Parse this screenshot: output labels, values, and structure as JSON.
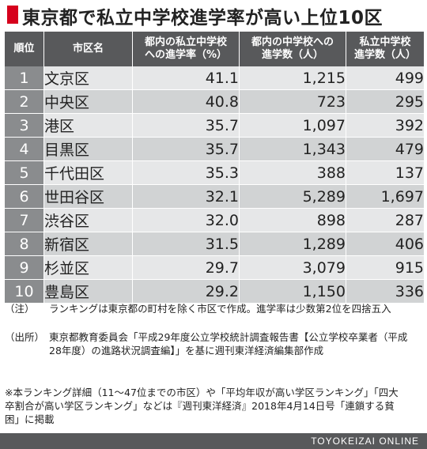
{
  "colors": {
    "title_mark": "#d6001c",
    "header_bg": "#58595b",
    "rank_bg": "#8a8c8e",
    "row_light": "#e6e7e8",
    "row_dark": "#d1d3d4",
    "footer_bg": "#58595b"
  },
  "title": "東京都で私立中学校進学率が高い上位10区",
  "headers": [
    [
      "順位"
    ],
    [
      "市区名"
    ],
    [
      "都内の私立中学校",
      "への進学率（%）"
    ],
    [
      "都内の中学校への",
      "進学数（人）"
    ],
    [
      "私立中学校",
      "進学数（人）"
    ]
  ],
  "rows": [
    {
      "rank": "1",
      "name": "文京区",
      "rate": "41.1",
      "total": "1,215",
      "private": "499"
    },
    {
      "rank": "2",
      "name": "中央区",
      "rate": "40.8",
      "total": "723",
      "private": "295"
    },
    {
      "rank": "3",
      "name": "港区",
      "rate": "35.7",
      "total": "1,097",
      "private": "392"
    },
    {
      "rank": "4",
      "name": "目黒区",
      "rate": "35.7",
      "total": "1,343",
      "private": "479"
    },
    {
      "rank": "5",
      "name": "千代田区",
      "rate": "35.3",
      "total": "388",
      "private": "137"
    },
    {
      "rank": "6",
      "name": "世田谷区",
      "rate": "32.1",
      "total": "5,289",
      "private": "1,697"
    },
    {
      "rank": "7",
      "name": "渋谷区",
      "rate": "32.0",
      "total": "898",
      "private": "287"
    },
    {
      "rank": "8",
      "name": "新宿区",
      "rate": "31.5",
      "total": "1,289",
      "private": "406"
    },
    {
      "rank": "9",
      "name": "杉並区",
      "rate": "29.7",
      "total": "3,079",
      "private": "915"
    },
    {
      "rank": "10",
      "name": "豊島区",
      "rate": "29.2",
      "total": "1,150",
      "private": "336"
    }
  ],
  "notes": {
    "note_label": "（注）",
    "note_text": "ランキングは東京都の町村を除く市区で作成。進学率は少数第2位を四捨五入",
    "source_label": "（出所）",
    "source_text": "東京都教育委員会「平成29年度公立学校統計調査報告書【公立学校卒業者（平成28年度）の進路状況調査編】」を基に週刊東洋経済編集部作成",
    "extra_text": "※本ランキング詳細（11～47位までの市区）や「平均年収が高い学区ランキング」「四大卒割合が高い学区ランキング」などは『週刊東洋経済』2018年4月14日号「連鎖する貧困」に掲載"
  },
  "footer": "TOYOKEIZAI ONLINE"
}
